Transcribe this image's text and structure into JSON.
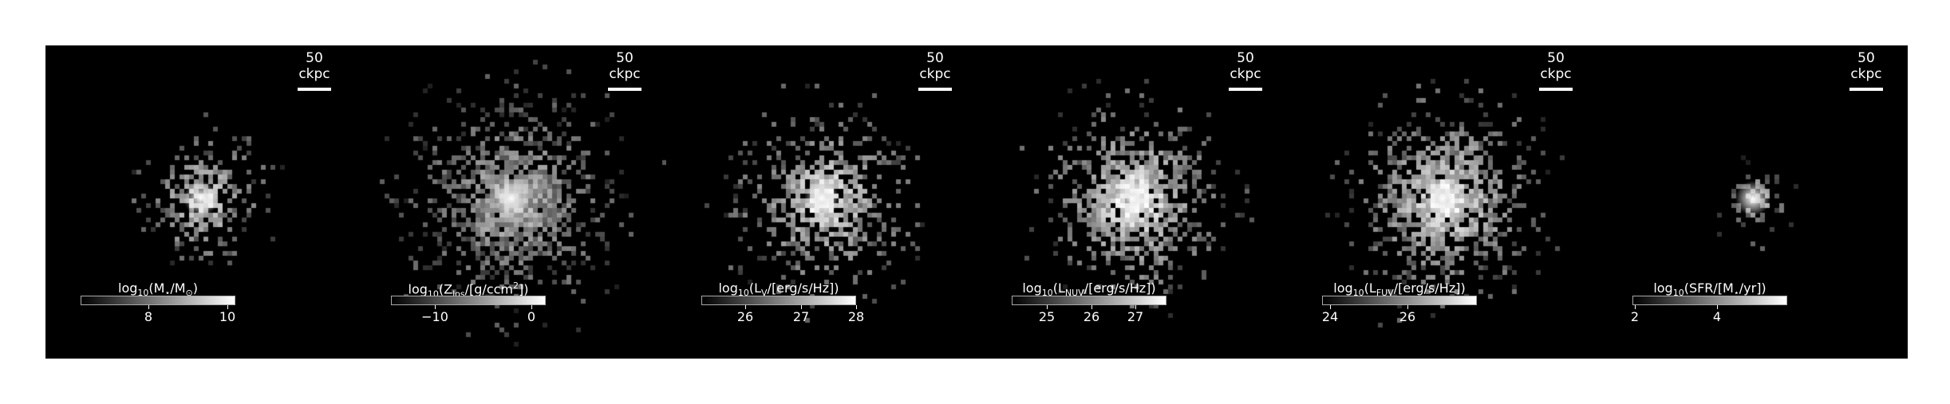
{
  "panels": [
    {
      "id": "stellar-mass",
      "scalebar": "50 ckpc",
      "cbar": {
        "pre": "log",
        "sub": "10",
        "post": "(M",
        "sub2": "⋆",
        "post2": "/M",
        "sub3": "⊙",
        "post3": ")",
        "vmin": 6.3,
        "vmax": 10.2,
        "ticks": [
          8,
          10
        ]
      },
      "blob": {
        "spread": 0.55,
        "core": 1.0,
        "density": 0.55,
        "bright": 0.75
      }
    },
    {
      "id": "metallicity",
      "scalebar": "50 ckpc",
      "cbar": {
        "pre": "log",
        "sub": "10",
        "post": "(Z",
        "sub2": "los",
        "post2": "/[g/ccm",
        "sup": "2",
        "post3": "])",
        "vmin": -14.5,
        "vmax": 1.5,
        "ticks": [
          -10,
          0
        ]
      },
      "blob": {
        "spread": 1.0,
        "core": 1.0,
        "density": 0.75,
        "bright": 0.6
      }
    },
    {
      "id": "v-band-luminosity",
      "scalebar": "50 ckpc",
      "cbar": {
        "pre": "log",
        "sub": "10",
        "post": "(L",
        "sub2": "V",
        "post2": "/[erg/s/Hz])",
        "vmin": 25.2,
        "vmax": 28.0,
        "ticks": [
          26,
          27,
          28
        ]
      },
      "blob": {
        "spread": 0.8,
        "core": 1.0,
        "density": 0.65,
        "bright": 0.85
      }
    },
    {
      "id": "nuv-luminosity",
      "scalebar": "50 ckpc",
      "cbar": {
        "pre": "log",
        "sub": "10",
        "post": "(L",
        "sub2": "NUV",
        "post2": "/[erg/s/Hz])",
        "vmin": 24.2,
        "vmax": 27.7,
        "ticks": [
          25,
          26,
          27
        ]
      },
      "blob": {
        "spread": 0.85,
        "core": 1.0,
        "density": 0.7,
        "bright": 0.9
      }
    },
    {
      "id": "fuv-luminosity",
      "scalebar": "50 ckpc",
      "cbar": {
        "pre": "log",
        "sub": "10",
        "post": "(L",
        "sub2": "FUV",
        "post2": "/[erg/s/Hz])",
        "vmin": 23.8,
        "vmax": 27.8,
        "ticks": [
          24,
          26
        ]
      },
      "blob": {
        "spread": 0.9,
        "core": 1.0,
        "density": 0.7,
        "bright": 0.85
      }
    },
    {
      "id": "sfr",
      "scalebar": "50 ckpc",
      "cbar": {
        "pre": "log",
        "sub": "10",
        "post": "(SFR/[M",
        "sub2": "⋆",
        "post2": "/yr])",
        "vmin": 1.95,
        "vmax": 5.7,
        "ticks": [
          2,
          4
        ]
      },
      "blob": {
        "spread": 0.2,
        "core": 1.0,
        "density": 0.35,
        "bright": 0.6
      }
    }
  ]
}
